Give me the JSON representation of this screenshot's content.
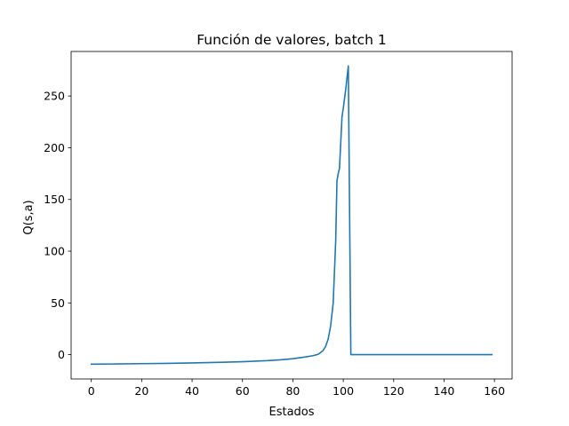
{
  "chart_data": {
    "type": "line",
    "title": "Función de valores, batch 1",
    "xlabel": "Estados",
    "ylabel": "Q(s,a)",
    "xlim": [
      -8,
      167
    ],
    "ylim": [
      -23.5,
      293
    ],
    "xticks": [
      0,
      20,
      40,
      60,
      80,
      100,
      120,
      140,
      160
    ],
    "yticks": [
      0,
      50,
      100,
      150,
      200,
      250
    ],
    "grid": false,
    "legend": "none",
    "series": [
      {
        "color": "#1f77b4",
        "points": [
          [
            0,
            -9.2
          ],
          [
            10,
            -9.0
          ],
          [
            20,
            -8.7
          ],
          [
            30,
            -8.4
          ],
          [
            40,
            -8.0
          ],
          [
            50,
            -7.5
          ],
          [
            60,
            -6.8
          ],
          [
            70,
            -5.8
          ],
          [
            75,
            -5.0
          ],
          [
            80,
            -3.9
          ],
          [
            85,
            -2.2
          ],
          [
            88,
            -1.0
          ],
          [
            90,
            0.3
          ],
          [
            91,
            2.0
          ],
          [
            92,
            4.0
          ],
          [
            93,
            8.0
          ],
          [
            94,
            15.0
          ],
          [
            95,
            28.0
          ],
          [
            96,
            50.0
          ],
          [
            97,
            110.0
          ],
          [
            97.5,
            168.0
          ],
          [
            98,
            175.0
          ],
          [
            98.5,
            180.0
          ],
          [
            99,
            205.0
          ],
          [
            99.5,
            230.0
          ],
          [
            100,
            238.0
          ],
          [
            101,
            257.0
          ],
          [
            102,
            279.0
          ],
          [
            103,
            0.0
          ],
          [
            110,
            0.0
          ],
          [
            120,
            0.0
          ],
          [
            130,
            0.0
          ],
          [
            140,
            0.0
          ],
          [
            150,
            0.0
          ],
          [
            159,
            0.0
          ]
        ]
      }
    ]
  }
}
